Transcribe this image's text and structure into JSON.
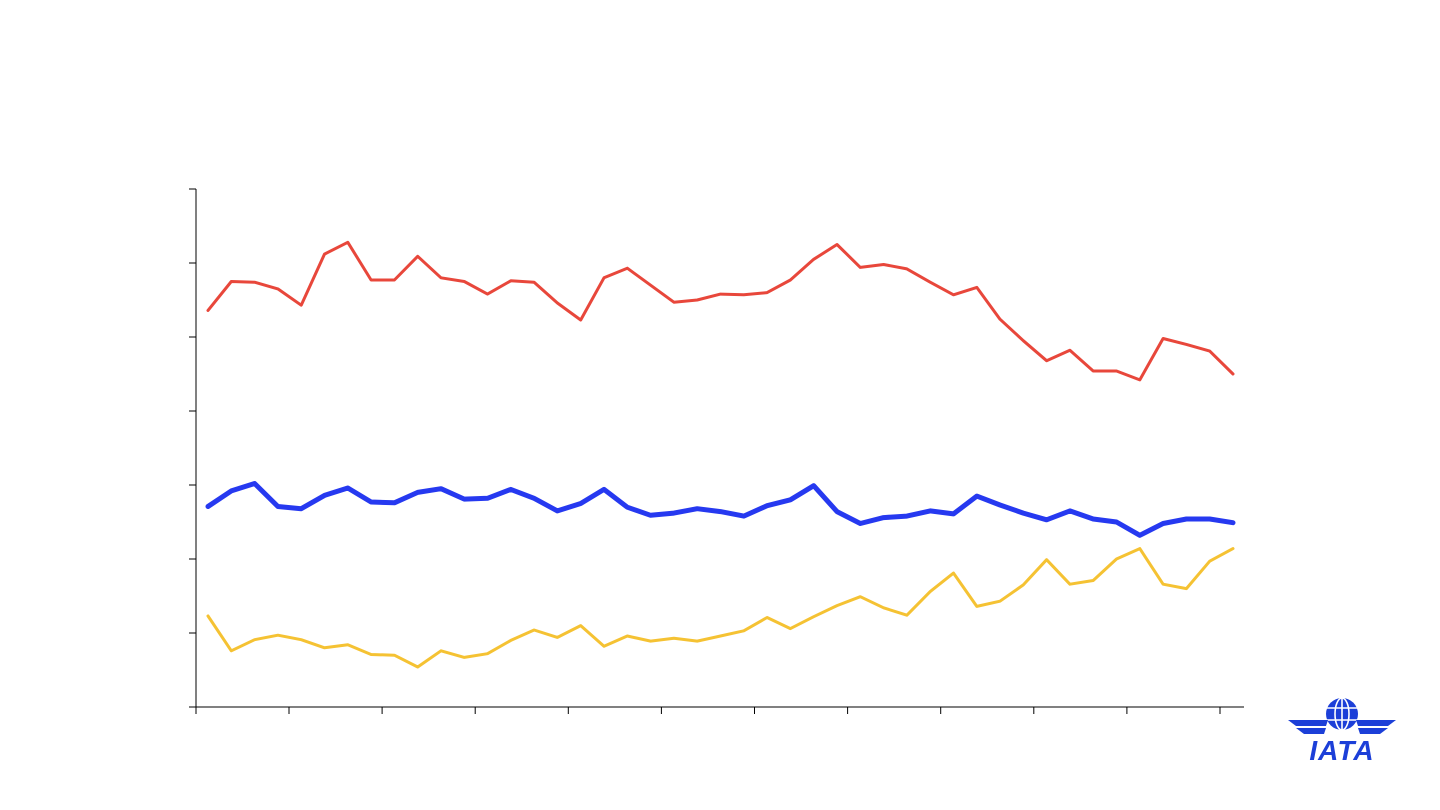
{
  "chart_data": {
    "type": "line",
    "title": "",
    "xlabel": "",
    "ylabel": "",
    "ylim": [
      0,
      7
    ],
    "ytick_count": 7,
    "xtick_count": 11,
    "grid": false,
    "legend": "none",
    "series": [
      {
        "color": "#e8473b",
        "values": [
          5.36,
          5.75,
          5.74,
          5.65,
          5.43,
          6.12,
          6.28,
          5.77,
          5.77,
          6.09,
          5.8,
          5.75,
          5.58,
          5.76,
          5.74,
          5.46,
          5.23,
          5.8,
          5.93,
          5.7,
          5.47,
          5.5,
          5.58,
          5.57,
          5.6,
          5.77,
          6.05,
          6.25,
          5.94,
          5.98,
          5.92,
          5.74,
          5.57,
          5.67,
          5.24,
          4.95,
          4.68,
          4.82,
          4.54,
          4.54,
          4.42,
          4.98,
          4.9,
          4.81,
          4.5
        ]
      },
      {
        "color": "#2639f0",
        "values": [
          2.71,
          2.92,
          3.02,
          2.71,
          2.68,
          2.86,
          2.96,
          2.77,
          2.76,
          2.9,
          2.95,
          2.81,
          2.82,
          2.94,
          2.82,
          2.65,
          2.75,
          2.94,
          2.7,
          2.59,
          2.62,
          2.68,
          2.64,
          2.58,
          2.72,
          2.8,
          2.99,
          2.64,
          2.48,
          2.56,
          2.58,
          2.65,
          2.61,
          2.85,
          2.73,
          2.62,
          2.53,
          2.65,
          2.54,
          2.5,
          2.32,
          2.48,
          2.54,
          2.54,
          2.49
        ]
      },
      {
        "color": "#f5c233",
        "values": [
          1.23,
          0.76,
          0.91,
          0.97,
          0.91,
          0.8,
          0.84,
          0.71,
          0.7,
          0.54,
          0.76,
          0.67,
          0.72,
          0.9,
          1.04,
          0.94,
          1.1,
          0.82,
          0.96,
          0.89,
          0.93,
          0.89,
          0.96,
          1.03,
          1.21,
          1.06,
          1.22,
          1.37,
          1.49,
          1.34,
          1.24,
          1.56,
          1.81,
          1.36,
          1.43,
          1.65,
          1.99,
          1.66,
          1.71,
          2.0,
          2.14,
          1.66,
          1.6,
          1.97,
          2.14
        ]
      }
    ]
  },
  "logo": {
    "text": "IATA",
    "color": "#1c3fd8"
  }
}
